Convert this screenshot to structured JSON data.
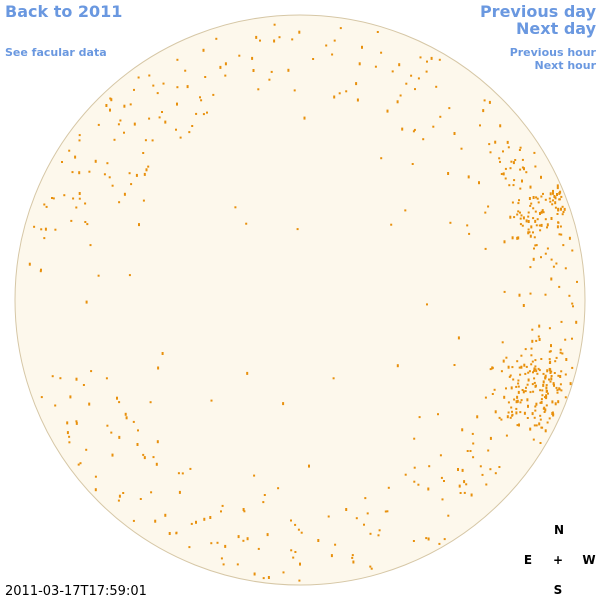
{
  "nav": {
    "back": "Back to 2011",
    "see_facular": "See facular data",
    "previous_day": "Previous day",
    "next_day": "Next day",
    "previous_hour": "Previous hour",
    "next_hour": "Next hour"
  },
  "timestamp": "2011-03-17T17:59:01",
  "compass": {
    "north": "N",
    "east": "E",
    "center": "+",
    "west": "W",
    "south": "S"
  }
}
